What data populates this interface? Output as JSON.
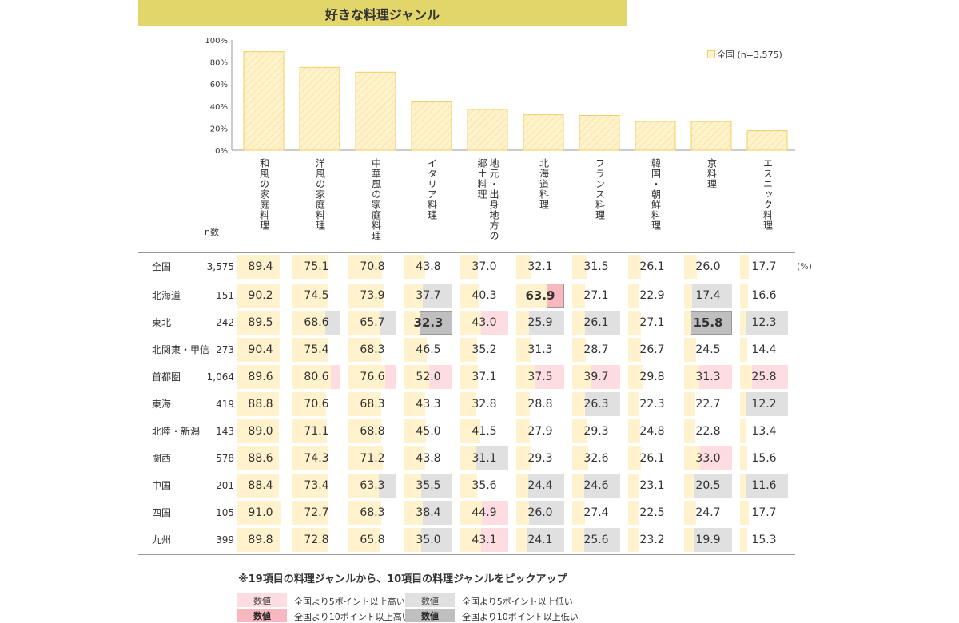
{
  "title": "好きな料理ジャンル",
  "legend_series": "全国 (n=3,575)",
  "n_header": "n数",
  "unit": "(%)",
  "note": "※19項目の料理ジャンルから、10項目の料理ジャンルをピックアップ",
  "colors": {
    "bar_fill": "#fff2cc",
    "bar_stroke": "#f0d060",
    "title_bg": "#e2d66a",
    "high5": "#fddde1",
    "high10": "#f9b8bf",
    "low5": "#e0e0e0",
    "low10": "#bfbfbf"
  },
  "legend": [
    {
      "swatch": "数値",
      "text": "全国より5ポイント以上高い",
      "level": "high5"
    },
    {
      "swatch": "数値",
      "text": "全国より10ポイント以上高い",
      "level": "high10"
    },
    {
      "swatch": "数値",
      "text": "全国より5ポイント以上低い",
      "level": "low5"
    },
    {
      "swatch": "数値",
      "text": "全国より10ポイント以上低い",
      "level": "low10"
    }
  ],
  "chart_data": {
    "type": "bar",
    "categories": [
      "和風の家庭料理",
      "洋風の家庭料理",
      "中華風の家庭料理",
      "イタリア料理",
      "地元・出身地方の郷土料理",
      "北海道料理",
      "フランス料理",
      "韓国・朝鮮料理",
      "京料理",
      "エスニック料理"
    ],
    "category_lines": [
      [
        "和風の家庭料理"
      ],
      [
        "洋風の家庭料理"
      ],
      [
        "中華風の家庭料理"
      ],
      [
        "イタリア料理"
      ],
      [
        "地元・出身地方の",
        "郷土料理"
      ],
      [
        "北海道料理"
      ],
      [
        "フランス料理"
      ],
      [
        "韓国・朝鮮料理"
      ],
      [
        "京料理"
      ],
      [
        "エスニック料理"
      ]
    ],
    "series": [
      {
        "name": "全国 (n=3,575)",
        "values": [
          89.4,
          75.1,
          70.8,
          43.8,
          37.0,
          32.1,
          31.5,
          26.1,
          26.0,
          17.7
        ]
      }
    ],
    "ylim": [
      0,
      100
    ],
    "yticks": [
      "0%",
      "20%",
      "40%",
      "60%",
      "80%",
      "100%"
    ],
    "legend_position": "top-right"
  },
  "table": {
    "national": {
      "region": "全国",
      "n": "3,575",
      "values": [
        "89.4",
        "75.1",
        "70.8",
        "43.8",
        "37.0",
        "32.1",
        "31.5",
        "26.1",
        "26.0",
        "17.7"
      ]
    },
    "rows": [
      {
        "region": [
          "北海道"
        ],
        "n": "151",
        "values": [
          "90.2",
          "74.5",
          "73.9",
          "37.7",
          "40.3",
          "63.9",
          "27.1",
          "22.9",
          "17.4",
          "16.6"
        ],
        "levels": [
          "",
          "",
          "",
          "low5",
          "",
          "high10",
          "",
          "",
          "low5",
          ""
        ],
        "bold": [
          5
        ]
      },
      {
        "region": [
          "東北"
        ],
        "n": "242",
        "values": [
          "89.5",
          "68.6",
          "65.7",
          "32.3",
          "43.0",
          "25.9",
          "26.1",
          "27.1",
          "15.8",
          "12.3"
        ],
        "levels": [
          "",
          "low5",
          "low5",
          "low10",
          "high5",
          "low5",
          "low5",
          "",
          "low10",
          "low5"
        ],
        "bold": [
          3,
          8
        ]
      },
      {
        "region": [
          "北関東・",
          "甲信"
        ],
        "n": "273",
        "values": [
          "90.4",
          "75.4",
          "68.3",
          "46.5",
          "35.2",
          "31.3",
          "28.7",
          "26.7",
          "24.5",
          "14.4"
        ],
        "levels": [
          "",
          "",
          "",
          "",
          "",
          "",
          "",
          "",
          "",
          ""
        ],
        "bold": []
      },
      {
        "region": [
          "首都圏"
        ],
        "n": "1,064",
        "values": [
          "89.6",
          "80.6",
          "76.6",
          "52.0",
          "37.1",
          "37.5",
          "39.7",
          "29.8",
          "31.3",
          "25.8"
        ],
        "levels": [
          "",
          "high5",
          "high5",
          "high5",
          "",
          "high5",
          "high5",
          "",
          "high5",
          "high5"
        ],
        "bold": []
      },
      {
        "region": [
          "東海"
        ],
        "n": "419",
        "values": [
          "88.8",
          "70.6",
          "68.3",
          "43.3",
          "32.8",
          "28.8",
          "26.3",
          "22.3",
          "22.7",
          "12.2"
        ],
        "levels": [
          "",
          "",
          "",
          "",
          "",
          "",
          "low5",
          "",
          "",
          "low5"
        ],
        "bold": []
      },
      {
        "region": [
          "北陸・",
          "新潟"
        ],
        "n": "143",
        "values": [
          "89.0",
          "71.1",
          "68.8",
          "45.0",
          "41.5",
          "27.9",
          "29.3",
          "24.8",
          "22.8",
          "13.4"
        ],
        "levels": [
          "",
          "",
          "",
          "",
          "",
          "",
          "",
          "",
          "",
          ""
        ],
        "bold": []
      },
      {
        "region": [
          "関西"
        ],
        "n": "578",
        "values": [
          "88.6",
          "74.3",
          "71.2",
          "43.8",
          "31.1",
          "29.3",
          "32.6",
          "26.1",
          "33.0",
          "15.6"
        ],
        "levels": [
          "",
          "",
          "",
          "",
          "low5",
          "",
          "",
          "",
          "high5",
          ""
        ],
        "bold": []
      },
      {
        "region": [
          "中国"
        ],
        "n": "201",
        "values": [
          "88.4",
          "73.4",
          "63.3",
          "35.5",
          "35.6",
          "24.4",
          "24.6",
          "23.1",
          "20.5",
          "11.6"
        ],
        "levels": [
          "",
          "",
          "low5",
          "low5",
          "",
          "low5",
          "low5",
          "",
          "low5",
          "low5"
        ],
        "bold": []
      },
      {
        "region": [
          "四国"
        ],
        "n": "105",
        "values": [
          "91.0",
          "72.7",
          "68.3",
          "38.4",
          "44.9",
          "26.0",
          "27.4",
          "22.5",
          "24.7",
          "17.7"
        ],
        "levels": [
          "",
          "",
          "",
          "low5",
          "high5",
          "low5",
          "",
          "",
          "",
          ""
        ],
        "bold": []
      },
      {
        "region": [
          "九州"
        ],
        "n": "399",
        "values": [
          "89.8",
          "72.8",
          "65.8",
          "35.0",
          "43.1",
          "24.1",
          "25.6",
          "23.2",
          "19.9",
          "15.3"
        ],
        "levels": [
          "",
          "",
          "",
          "low5",
          "high5",
          "low5",
          "low5",
          "",
          "low5",
          ""
        ],
        "bold": []
      }
    ]
  }
}
